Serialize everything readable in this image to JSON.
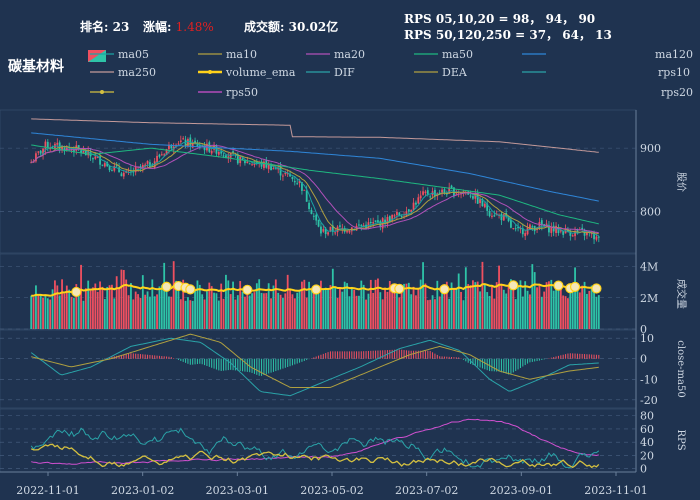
{
  "header": {
    "rank_label": "排名:",
    "rank_value": "23",
    "change_label": "涨幅:",
    "change_value": "1.48%",
    "turnover_label": "成交额:",
    "turnover_value": "30.02亿",
    "rps_line1": "RPS 05,10,20 = 98， 94， 90",
    "rps_line2": "RPS 50,120,250 = 37， 64， 13"
  },
  "title": "碳基材料",
  "colors": {
    "background": "#1f3350",
    "up": "#ef5060",
    "down": "#2ec4a8",
    "change_text": "#e02020",
    "volume_ema": "#ffd21a"
  },
  "legend": [
    {
      "name": "ma05",
      "color": "#1aa3a3",
      "style": "line"
    },
    {
      "name": "ma10",
      "color": "#b0a040",
      "style": "line"
    },
    {
      "name": "ma20",
      "color": "#b050b8",
      "style": "line"
    },
    {
      "name": "ma50",
      "color": "#1fb880",
      "style": "line"
    },
    {
      "name": "ma120",
      "color": "#2f86d8",
      "style": "line"
    },
    {
      "name": "ma250",
      "color": "#c49a9a",
      "style": "line"
    },
    {
      "name": "volume_ema",
      "color": "#ffd21a",
      "style": "thick"
    },
    {
      "name": "DIF",
      "color": "#2aa3a8",
      "style": "line"
    },
    {
      "name": "DEA",
      "color": "#b0a040",
      "style": "line"
    },
    {
      "name": "rps10",
      "color": "#2aa3a8",
      "style": "line"
    },
    {
      "name": "rps20",
      "color": "#d4c040",
      "style": "dot"
    },
    {
      "name": "rps50",
      "color": "#d050d0",
      "style": "line"
    }
  ],
  "chart_data": [
    {
      "type": "candlestick",
      "ylabel": "股价",
      "yticks": [
        800,
        900
      ],
      "ylim": [
        735,
        960
      ],
      "grid": true,
      "ma250": [
        [
          0,
          946
        ],
        [
          120,
          940
        ],
        [
          260,
          936
        ],
        [
          262,
          918
        ],
        [
          350,
          917
        ],
        [
          470,
          910
        ],
        [
          572,
          893
        ]
      ],
      "ma120": [
        [
          0,
          924
        ],
        [
          120,
          906
        ],
        [
          260,
          895
        ],
        [
          350,
          884
        ],
        [
          440,
          860
        ],
        [
          520,
          832
        ],
        [
          572,
          816
        ]
      ],
      "ma50": [
        [
          0,
          905
        ],
        [
          60,
          890
        ],
        [
          120,
          900
        ],
        [
          200,
          884
        ],
        [
          280,
          865
        ],
        [
          350,
          852
        ],
        [
          470,
          826
        ],
        [
          530,
          795
        ],
        [
          572,
          780
        ]
      ]
    },
    {
      "type": "bar",
      "ylabel": "成交量",
      "yticks": [
        "0",
        "2M",
        "4M"
      ],
      "ylim": [
        0,
        4800000
      ],
      "volume_ema_highlights": [
        0.08,
        0.24,
        0.26,
        0.27,
        0.28,
        0.38,
        0.5,
        0.64,
        0.65,
        0.73,
        0.85,
        0.93,
        0.95,
        0.96,
        0.995
      ]
    },
    {
      "type": "bar",
      "ylabel": "close-ma50",
      "yticks": [
        -20,
        -10,
        0,
        10
      ],
      "ylim": [
        -24,
        14
      ]
    },
    {
      "type": "line",
      "ylabel": "RPS",
      "yticks": [
        0,
        20,
        40,
        60,
        80
      ],
      "ylim": [
        -5,
        90
      ]
    }
  ],
  "x_axis": {
    "tick_labels": [
      "2022-11-01",
      "2023-01-02",
      "2023-03-01",
      "2023-05-02",
      "2023-07-02",
      "2023-09-01",
      "2023-11-01"
    ]
  }
}
